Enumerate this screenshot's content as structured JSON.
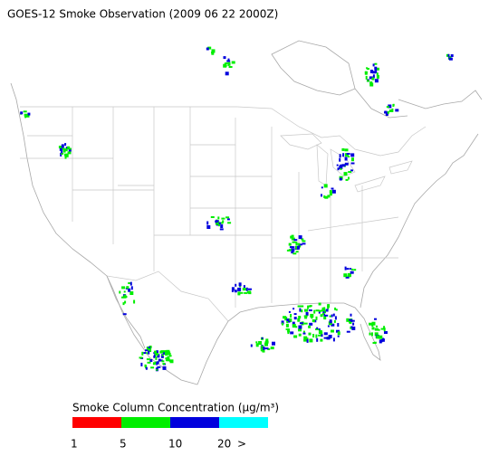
{
  "title": "GOES-12 Smoke Observation (2009 06 22  2000Z)",
  "legend": {
    "title": "Smoke Column Concentration (μg/m³)",
    "colors": [
      "#ff0000",
      "#00ee00",
      "#0000dd",
      "#00ffff"
    ],
    "labels": [
      "1",
      "5",
      "10",
      "20",
      ">"
    ]
  }
}
